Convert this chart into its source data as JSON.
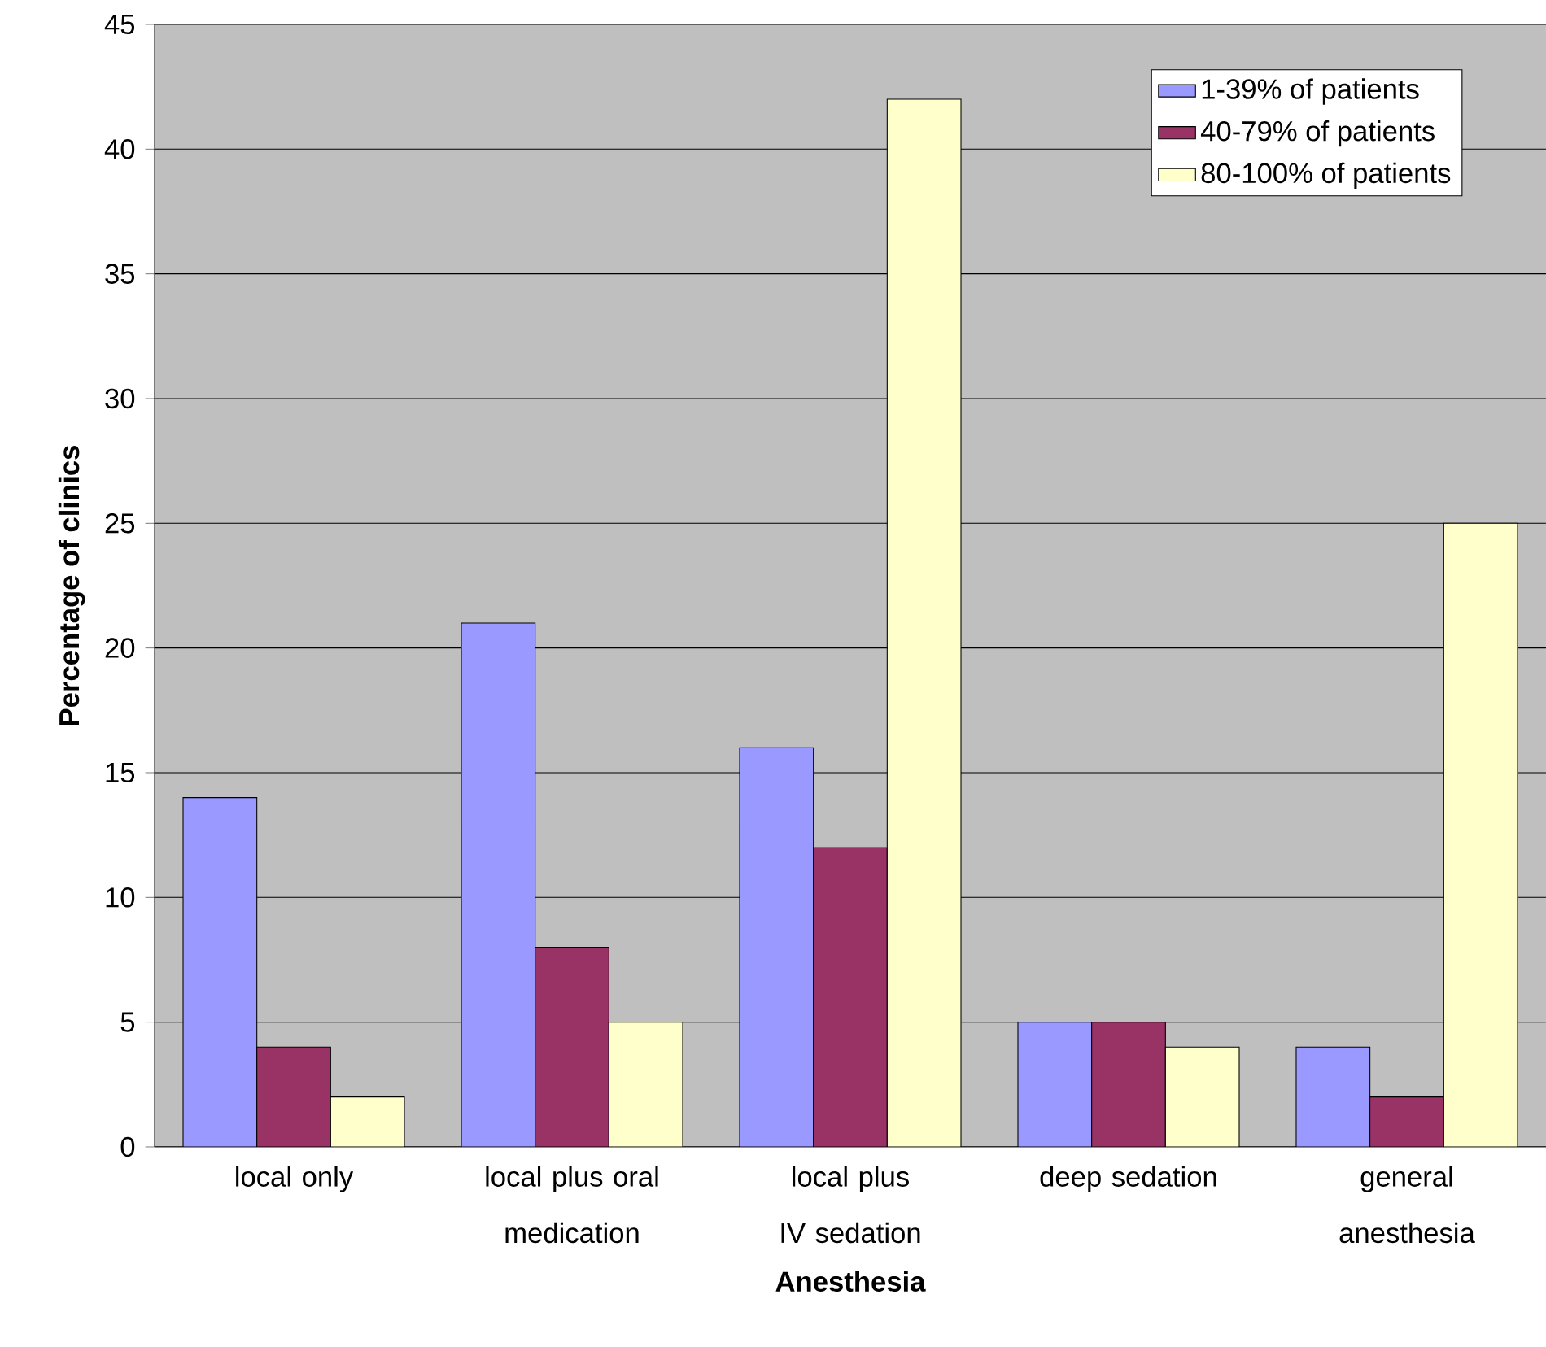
{
  "chart_data": {
    "type": "bar",
    "xlabel": "Anesthesia",
    "ylabel": "Percentage of clinics",
    "categories": [
      "local only",
      "local plus oral medication",
      "local plus IV sedation",
      "deep sedation",
      "general anesthesia"
    ],
    "series": [
      {
        "name": "1-39% of patients",
        "color": "#9999ff",
        "values": [
          14,
          21,
          16,
          5,
          4
        ]
      },
      {
        "name": "40-79% of patients",
        "color": "#993366",
        "values": [
          4,
          8,
          12,
          5,
          2
        ]
      },
      {
        "name": "80-100% of patients",
        "color": "#ffffcc",
        "values": [
          2,
          5,
          42,
          4,
          25
        ]
      }
    ],
    "ylim": [
      0,
      45
    ],
    "yticks": [
      0,
      5,
      10,
      15,
      20,
      25,
      30,
      35,
      40,
      45
    ],
    "grid": "y",
    "legend": "top right"
  }
}
